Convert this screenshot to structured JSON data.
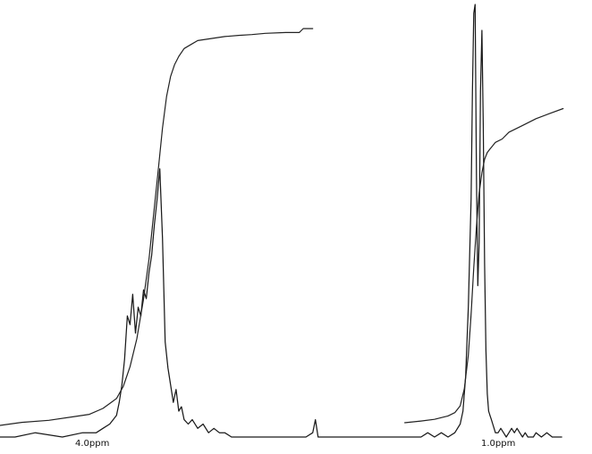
{
  "chart_data": {
    "type": "line",
    "title": "",
    "xlabel": "",
    "ylabel": "",
    "x_axis_reversed": true,
    "axis_markers": [
      {
        "label": "4.0ppm",
        "ppm": 4.0
      },
      {
        "label": "1.0ppm",
        "ppm": 1.0
      }
    ],
    "grid": false,
    "legend": "none",
    "series": [
      {
        "role": "spectrum",
        "x": [
          4.71,
          4.55,
          4.4,
          4.2,
          4.05,
          3.95,
          3.9,
          3.85,
          3.8,
          3.78,
          3.76,
          3.74,
          3.72,
          3.7,
          3.68,
          3.66,
          3.64,
          3.62,
          3.6,
          3.58,
          3.56,
          3.54,
          3.52,
          3.5,
          3.48,
          3.46,
          3.44,
          3.42,
          3.4,
          3.38,
          3.36,
          3.34,
          3.32,
          3.3,
          3.27,
          3.24,
          3.2,
          3.16,
          3.12,
          3.08,
          3.04,
          3.0,
          2.95,
          2.9,
          2.8,
          2.7,
          2.6,
          2.5,
          2.4,
          2.35,
          2.33,
          2.31,
          2.28,
          2.2,
          2.1,
          2.0,
          1.9,
          1.8,
          1.7,
          1.6,
          1.55,
          1.5,
          1.45,
          1.4,
          1.35,
          1.3,
          1.28,
          1.26,
          1.24,
          1.22,
          1.2,
          1.18,
          1.17,
          1.16,
          1.15,
          1.14,
          1.13,
          1.12,
          1.11,
          1.1,
          1.09,
          1.08,
          1.07,
          1.06,
          1.05,
          1.04,
          1.03,
          1.02,
          1.01,
          1.0,
          0.98,
          0.96,
          0.94,
          0.92,
          0.9,
          0.88,
          0.86,
          0.84,
          0.82,
          0.8,
          0.78,
          0.76,
          0.74,
          0.72,
          0.7,
          0.66,
          0.62,
          0.58,
          0.54,
          0.51
        ],
        "y": [
          0.0,
          0.0,
          0.01,
          0.0,
          0.01,
          0.01,
          0.02,
          0.03,
          0.05,
          0.08,
          0.12,
          0.18,
          0.28,
          0.26,
          0.33,
          0.24,
          0.3,
          0.28,
          0.34,
          0.32,
          0.38,
          0.42,
          0.49,
          0.55,
          0.62,
          0.46,
          0.22,
          0.16,
          0.12,
          0.08,
          0.11,
          0.06,
          0.07,
          0.04,
          0.03,
          0.04,
          0.02,
          0.03,
          0.01,
          0.02,
          0.01,
          0.01,
          0.0,
          0.0,
          0.0,
          0.0,
          0.0,
          0.0,
          0.0,
          0.01,
          0.04,
          0.0,
          0.0,
          0.0,
          0.0,
          0.0,
          0.0,
          0.0,
          0.0,
          0.0,
          0.0,
          0.01,
          0.0,
          0.01,
          0.0,
          0.01,
          0.02,
          0.03,
          0.06,
          0.14,
          0.3,
          0.55,
          0.8,
          0.98,
          1.0,
          0.6,
          0.35,
          0.45,
          0.8,
          0.94,
          0.72,
          0.4,
          0.2,
          0.1,
          0.06,
          0.05,
          0.04,
          0.03,
          0.02,
          0.01,
          0.01,
          0.02,
          0.01,
          0.0,
          0.01,
          0.02,
          0.01,
          0.02,
          0.01,
          0.0,
          0.01,
          0.0,
          0.0,
          0.0,
          0.01,
          0.0,
          0.01,
          0.0,
          0.0,
          0.0
        ]
      },
      {
        "role": "integral",
        "x": [
          4.71,
          4.5,
          4.3,
          4.1,
          4.0,
          3.9,
          3.8,
          3.75,
          3.7,
          3.65,
          3.6,
          3.56,
          3.52,
          3.49,
          3.46,
          3.43,
          3.4,
          3.37,
          3.34,
          3.3,
          3.25,
          3.2,
          3.1,
          3.0,
          2.9,
          2.8,
          2.7,
          2.55,
          2.45,
          2.42,
          2.35
        ],
        "y": [
          0.0,
          0.01,
          0.015,
          0.025,
          0.03,
          0.045,
          0.07,
          0.1,
          0.15,
          0.22,
          0.32,
          0.42,
          0.55,
          0.65,
          0.75,
          0.83,
          0.88,
          0.91,
          0.93,
          0.95,
          0.96,
          0.97,
          0.975,
          0.98,
          0.983,
          0.985,
          0.988,
          0.99,
          0.99,
          1.0,
          1.0
        ]
      },
      {
        "role": "integral",
        "x": [
          1.67,
          1.55,
          1.45,
          1.35,
          1.3,
          1.26,
          1.23,
          1.2,
          1.18,
          1.16,
          1.14,
          1.12,
          1.1,
          1.08,
          1.06,
          1.04,
          1.02,
          1.0,
          0.95,
          0.9,
          0.8,
          0.7,
          0.6,
          0.5
        ],
        "y": [
          0.0,
          0.005,
          0.01,
          0.02,
          0.03,
          0.05,
          0.1,
          0.2,
          0.32,
          0.46,
          0.58,
          0.68,
          0.74,
          0.78,
          0.8,
          0.81,
          0.82,
          0.83,
          0.84,
          0.86,
          0.88,
          0.9,
          0.915,
          0.93
        ]
      }
    ]
  }
}
